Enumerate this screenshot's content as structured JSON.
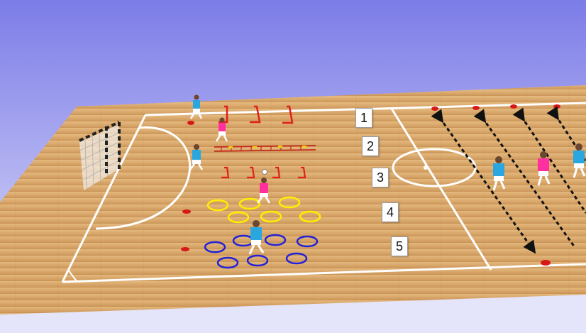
{
  "diagram": {
    "type": "futsal-training-drill",
    "colors": {
      "sky_top": "#7c7ce8",
      "sky_bottom": "#e4e4fa",
      "floor": "#cf9a5c",
      "floor_light": "#e2b476",
      "lines": "#ffffff",
      "team_a": "#2aa6e0",
      "team_b": "#ff2fa0",
      "hurdle": "#e0201a",
      "ladder": "#c22a1a",
      "ring_yellow": "#ffee00",
      "ring_blue": "#2222d8",
      "cone": "#d81818",
      "arrow": "#111111"
    },
    "stations": [
      {
        "id": 1,
        "label": "1",
        "equipment": "hurdles"
      },
      {
        "id": 2,
        "label": "2",
        "equipment": "agility-ladder"
      },
      {
        "id": 3,
        "label": "3",
        "equipment": "mini-hurdles"
      },
      {
        "id": 4,
        "label": "4",
        "equipment": "yellow-rings"
      },
      {
        "id": 5,
        "label": "5",
        "equipment": "blue-rings"
      }
    ],
    "players": [
      {
        "team": "blue",
        "station": "1"
      },
      {
        "team": "pink",
        "station": "1"
      },
      {
        "team": "blue",
        "station": "2"
      },
      {
        "team": "pink",
        "station": "3"
      },
      {
        "team": "blue",
        "station": "5"
      },
      {
        "team": "blue",
        "station": "sprint-lane"
      },
      {
        "team": "pink",
        "station": "sprint-lane"
      },
      {
        "team": "blue",
        "station": "sprint-lane"
      }
    ],
    "sprint_lanes": 4
  }
}
